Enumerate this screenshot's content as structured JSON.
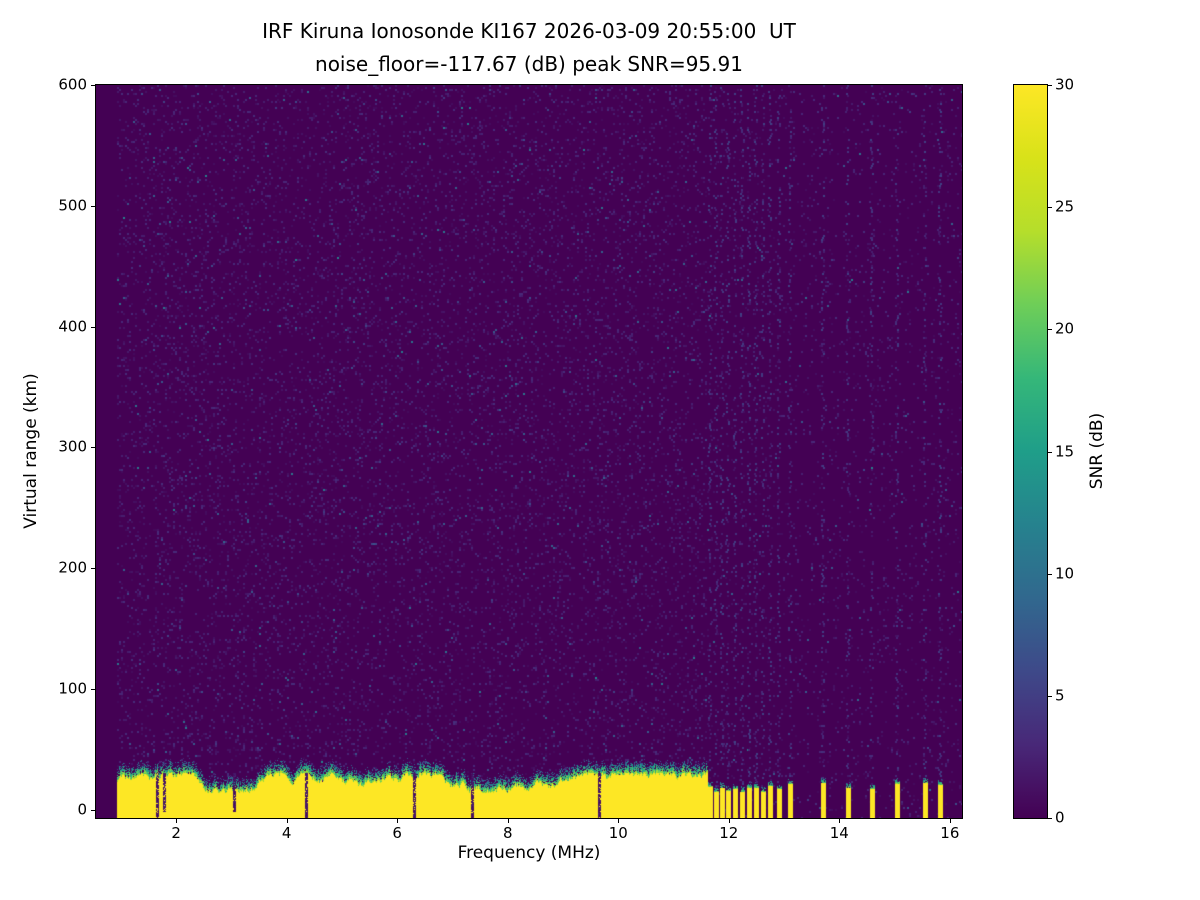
{
  "chart_data": {
    "type": "heatmap",
    "title": "IRF Kiruna Ionosonde KI167 2026-03-09 20:55:00  UT",
    "subtitle": "noise_floor=-117.67 (dB) peak SNR=95.91",
    "station": "IRF Kiruna Ionosonde KI167",
    "timestamp_ut": "2026-03-09 20:55:00",
    "noise_floor_db": -117.67,
    "peak_snr_db": 95.91,
    "xlabel": "Frequency (MHz)",
    "ylabel": "Virtual range (km)",
    "colorbar_label": "SNR (dB)",
    "xlim": [
      0.55,
      16.22
    ],
    "ylim": [
      -7,
      600
    ],
    "clim": [
      0,
      30
    ],
    "xticks": [
      2,
      4,
      6,
      8,
      10,
      12,
      14,
      16
    ],
    "yticks": [
      0,
      100,
      200,
      300,
      400,
      500,
      600
    ],
    "colorbar_ticks": [
      0,
      5,
      10,
      15,
      20,
      25,
      30
    ],
    "grid": false,
    "colormap": "viridis",
    "colormap_stops": [
      [
        0,
        "#440154"
      ],
      [
        0.1,
        "#482878"
      ],
      [
        0.2,
        "#3e4989"
      ],
      [
        0.3,
        "#31688e"
      ],
      [
        0.4,
        "#26828e"
      ],
      [
        0.5,
        "#1f9e89"
      ],
      [
        0.6,
        "#35b779"
      ],
      [
        0.7,
        "#6ece58"
      ],
      [
        0.8,
        "#b5de2b"
      ],
      [
        0.9,
        "#d8e219"
      ],
      [
        1,
        "#fde725"
      ]
    ],
    "features": {
      "background_noise_snr_db": [
        0,
        4
      ],
      "data_freq_start_mhz": 0.93,
      "ground_echo_band": {
        "f_start_mhz": 0.93,
        "f_end_mhz": 11.62,
        "top_km_mean": 21,
        "top_km_jitter": 7,
        "transition_km": 14,
        "snr_db": 30
      },
      "band_notch_freqs_mhz": [
        1.65,
        1.78,
        3.05,
        4.35,
        6.3,
        7.35,
        9.65
      ],
      "rfi_stripe_freqs_mhz": [
        11.66,
        11.77,
        11.88,
        11.99,
        12.11,
        12.24,
        12.37,
        12.49,
        12.62,
        12.75,
        12.9,
        13.11,
        13.7,
        14.16,
        14.6,
        15.04,
        15.55,
        15.82
      ],
      "stripe_width_mhz": 0.08,
      "stripe_top_km": 18
    }
  }
}
